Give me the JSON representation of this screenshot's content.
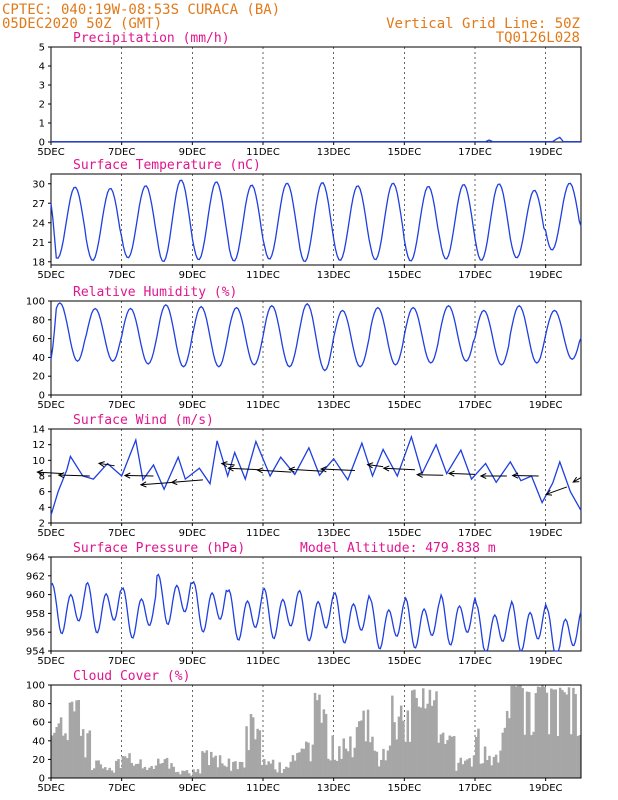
{
  "header": {
    "line1_left": "CPTEC:  040:19W-08:53S  CURACA (BA)",
    "line2_left": "05DEC2020 50Z (GMT)",
    "line1_right": "Vertical Grid Line: 50Z",
    "line2_right": "TQ0126L028"
  },
  "colors": {
    "header": "#e07a1a",
    "title": "#e0168f",
    "series": "#1f3fe0",
    "bars": "#a6a6a6"
  },
  "chart_data": [
    {
      "type": "line",
      "id": "precip",
      "title": "Precipitation (mm/h)",
      "ylim": [
        0,
        5
      ],
      "yticks": [
        0,
        1,
        2,
        3,
        4,
        5
      ],
      "xlim": [
        0,
        15
      ],
      "xticks": [
        0,
        2,
        4,
        6,
        8,
        10,
        12,
        14
      ],
      "xticklabels": [
        "5DEC",
        "7DEC",
        "9DEC",
        "11DEC",
        "13DEC",
        "15DEC",
        "17DEC",
        "19DEC"
      ],
      "model": {
        "kind": "precip",
        "base": 0.02,
        "spikes": [
          [
            12.4,
            0.1
          ],
          [
            14.3,
            0.15
          ],
          [
            14.4,
            0.25
          ]
        ]
      }
    },
    {
      "type": "line",
      "id": "temp",
      "title": "Surface Temperature (nC)",
      "ylim": [
        17.5,
        31.5
      ],
      "yticks": [
        18,
        21,
        24,
        27,
        30
      ],
      "xlim": [
        0,
        15
      ],
      "xticks": [
        0,
        2,
        4,
        6,
        8,
        10,
        12,
        14
      ],
      "xticklabels": [
        "5DEC",
        "7DEC",
        "9DEC",
        "11DEC",
        "13DEC",
        "15DEC",
        "17DEC",
        "19DEC"
      ],
      "model": {
        "kind": "diurnal",
        "start": 27,
        "peak_phase": 0.68,
        "max": [
          29.5,
          29.3,
          29.7,
          30.6,
          30.3,
          29.8,
          30.1,
          30.2,
          29.7,
          30.1,
          29.6,
          29.9,
          30.0,
          29.0,
          30.1,
          30.8
        ],
        "min": [
          18.5,
          18.2,
          18.6,
          18.0,
          18.3,
          18.1,
          18.4,
          18.0,
          18.2,
          18.3,
          18.1,
          18.4,
          18.2,
          18.6,
          19.8,
          20.5
        ]
      }
    },
    {
      "type": "line",
      "id": "rh",
      "title": "Relative Humidity (%)",
      "ylim": [
        0,
        100
      ],
      "yticks": [
        0,
        20,
        40,
        60,
        80,
        100
      ],
      "xlim": [
        0,
        15
      ],
      "xticks": [
        0,
        2,
        4,
        6,
        8,
        10,
        12,
        14
      ],
      "xticklabels": [
        "5DEC",
        "7DEC",
        "9DEC",
        "11DEC",
        "13DEC",
        "15DEC",
        "17DEC",
        "19DEC"
      ],
      "model": {
        "kind": "diurnal",
        "start": 38,
        "peak_phase": 0.25,
        "max": [
          98,
          92,
          92,
          96,
          94,
          93,
          95,
          97,
          90,
          93,
          93,
          95,
          90,
          95,
          90,
          82
        ],
        "min": [
          36,
          36,
          33,
          30,
          30,
          32,
          30,
          26,
          30,
          32,
          34,
          36,
          32,
          34,
          38,
          40
        ]
      }
    },
    {
      "type": "line",
      "id": "wind",
      "title": "Surface Wind (m/s)",
      "ylim": [
        2,
        14
      ],
      "yticks": [
        2,
        4,
        6,
        8,
        10,
        12,
        14
      ],
      "xlim": [
        0,
        15
      ],
      "xticks": [
        0,
        2,
        4,
        6,
        8,
        10,
        12,
        14
      ],
      "xticklabels": [
        "5DEC",
        "7DEC",
        "9DEC",
        "11DEC",
        "13DEC",
        "15DEC",
        "17DEC",
        "19DEC"
      ],
      "model": {
        "kind": "gusty",
        "mean": 8.3,
        "amp": 2.2,
        "points": [
          [
            0,
            3
          ],
          [
            0.2,
            6
          ],
          [
            0.45,
            8.8
          ],
          [
            0.55,
            10.5
          ],
          [
            0.9,
            8
          ],
          [
            1.2,
            7.6
          ],
          [
            1.6,
            9.6
          ],
          [
            2.0,
            8
          ],
          [
            2.4,
            12.6
          ],
          [
            2.6,
            7.5
          ],
          [
            2.9,
            9.4
          ],
          [
            3.2,
            6.3
          ],
          [
            3.6,
            10.4
          ],
          [
            3.8,
            7.6
          ],
          [
            4.2,
            9
          ],
          [
            4.5,
            7
          ],
          [
            4.7,
            12.5
          ],
          [
            5.0,
            8
          ],
          [
            5.2,
            11
          ],
          [
            5.5,
            7.6
          ],
          [
            5.8,
            12.4
          ],
          [
            6.2,
            8
          ],
          [
            6.5,
            10.4
          ],
          [
            6.9,
            8.2
          ],
          [
            7.3,
            11.6
          ],
          [
            7.6,
            8.1
          ],
          [
            8.0,
            10.2
          ],
          [
            8.4,
            7.5
          ],
          [
            8.8,
            12.2
          ],
          [
            9.1,
            8
          ],
          [
            9.4,
            11.4
          ],
          [
            9.8,
            8
          ],
          [
            10.2,
            13
          ],
          [
            10.5,
            8.3
          ],
          [
            10.9,
            12
          ],
          [
            11.2,
            8.3
          ],
          [
            11.6,
            11.3
          ],
          [
            11.9,
            7.6
          ],
          [
            12.3,
            9.6
          ],
          [
            12.6,
            7.2
          ],
          [
            13.0,
            9.8
          ],
          [
            13.3,
            7.4
          ],
          [
            13.6,
            8
          ],
          [
            13.9,
            4.6
          ],
          [
            14.2,
            7.1
          ],
          [
            14.4,
            9.8
          ],
          [
            14.7,
            6
          ],
          [
            15,
            3.6
          ]
        ]
      },
      "vectors": [
        {
          "x": 0.35,
          "y": 8.3,
          "dx": -1.0,
          "dy": 0.3
        },
        {
          "x": 1.1,
          "y": 8.0,
          "dx": -1.2,
          "dy": 0.2
        },
        {
          "x": 1.8,
          "y": 9.3,
          "dx": -0.6,
          "dy": 0.5
        },
        {
          "x": 2.9,
          "y": 8.0,
          "dx": -1.1,
          "dy": 0.1
        },
        {
          "x": 3.5,
          "y": 7.2,
          "dx": -1.3,
          "dy": -0.5
        },
        {
          "x": 4.3,
          "y": 7.5,
          "dx": -1.2,
          "dy": -0.5
        },
        {
          "x": 5.2,
          "y": 9.4,
          "dx": -0.5,
          "dy": 0.3
        },
        {
          "x": 5.9,
          "y": 8.8,
          "dx": -1.2,
          "dy": 0.3
        },
        {
          "x": 6.8,
          "y": 8.5,
          "dx": -1.3,
          "dy": 0.4
        },
        {
          "x": 7.7,
          "y": 8.6,
          "dx": -1.3,
          "dy": 0.4
        },
        {
          "x": 8.6,
          "y": 8.7,
          "dx": -1.3,
          "dy": 0.3
        },
        {
          "x": 9.4,
          "y": 9.2,
          "dx": -0.6,
          "dy": 0.4
        },
        {
          "x": 10.3,
          "y": 8.8,
          "dx": -1.2,
          "dy": 0.3
        },
        {
          "x": 11.1,
          "y": 8.1,
          "dx": -1.0,
          "dy": 0.1
        },
        {
          "x": 12.0,
          "y": 8.2,
          "dx": -1.0,
          "dy": 0.2
        },
        {
          "x": 12.9,
          "y": 8.0,
          "dx": -1.0,
          "dy": 0.0
        },
        {
          "x": 13.8,
          "y": 8.0,
          "dx": -1.0,
          "dy": 0.1
        },
        {
          "x": 14.6,
          "y": 6.6,
          "dx": -0.8,
          "dy": -1.5
        },
        {
          "x": 15.0,
          "y": 7.8,
          "dx": -0.3,
          "dy": -0.9
        }
      ]
    },
    {
      "type": "line",
      "id": "press",
      "title": "Surface Pressure (hPa)",
      "annotation": "Model Altitude: 479.838 m",
      "ylim": [
        954,
        964
      ],
      "yticks": [
        954,
        956,
        958,
        960,
        962,
        964
      ],
      "xlim": [
        0,
        15
      ],
      "xticks": [
        0,
        2,
        4,
        6,
        8,
        10,
        12,
        14
      ],
      "xticklabels": [
        "5DEC",
        "7DEC",
        "9DEC",
        "11DEC",
        "13DEC",
        "15DEC",
        "17DEC",
        "19DEC"
      ],
      "model": {
        "kind": "pressure",
        "trend_start": 958.6,
        "trend_end": 956.3,
        "amp": 2.0,
        "day_offsets": [
          0.0,
          0.3,
          -0.2,
          1.8,
          1.0,
          0.1,
          0.5,
          0.4,
          0.3,
          -0.3,
          0.0,
          0.6,
          -0.4,
          0.1,
          -0.6
        ]
      }
    },
    {
      "type": "bar",
      "id": "cloud",
      "title": "Cloud Cover (%)",
      "ylim": [
        0,
        100
      ],
      "yticks": [
        0,
        20,
        40,
        60,
        80,
        100
      ],
      "xlim": [
        0,
        15
      ],
      "xticks": [
        0,
        2,
        4,
        6,
        8,
        10,
        12,
        14
      ],
      "xticklabels": [
        "5DEC",
        "7DEC",
        "9DEC",
        "11DEC",
        "13DEC",
        "15DEC",
        "17DEC",
        "19DEC"
      ],
      "segments": [
        [
          0.0,
          0.4,
          20,
          75
        ],
        [
          0.4,
          0.8,
          60,
          92
        ],
        [
          0.8,
          1.1,
          30,
          55
        ],
        [
          1.1,
          1.4,
          10,
          30
        ],
        [
          1.4,
          1.8,
          5,
          12
        ],
        [
          1.8,
          2.2,
          10,
          28
        ],
        [
          2.2,
          2.6,
          8,
          22
        ],
        [
          2.6,
          3.0,
          5,
          14
        ],
        [
          3.0,
          3.5,
          10,
          25
        ],
        [
          3.5,
          4.2,
          2,
          10
        ],
        [
          4.2,
          4.6,
          15,
          35
        ],
        [
          4.6,
          5.0,
          5,
          28
        ],
        [
          5.0,
          5.5,
          3,
          22
        ],
        [
          5.5,
          5.9,
          20,
          75
        ],
        [
          5.9,
          6.3,
          5,
          25
        ],
        [
          6.3,
          6.8,
          4,
          18
        ],
        [
          6.8,
          7.4,
          5,
          40
        ],
        [
          7.4,
          7.8,
          40,
          95
        ],
        [
          7.8,
          8.2,
          20,
          55
        ],
        [
          8.2,
          8.6,
          10,
          45
        ],
        [
          8.6,
          9.1,
          15,
          75
        ],
        [
          9.1,
          9.6,
          5,
          40
        ],
        [
          9.6,
          10.1,
          40,
          95
        ],
        [
          10.1,
          10.6,
          60,
          100
        ],
        [
          10.6,
          11.0,
          60,
          98
        ],
        [
          11.0,
          11.4,
          20,
          50
        ],
        [
          11.4,
          11.9,
          5,
          25
        ],
        [
          11.9,
          12.3,
          10,
          55
        ],
        [
          12.3,
          12.7,
          5,
          35
        ],
        [
          12.7,
          13.0,
          30,
          75
        ],
        [
          13.0,
          13.6,
          80,
          100
        ],
        [
          13.6,
          14.3,
          85,
          100
        ],
        [
          14.3,
          15.0,
          80,
          100
        ]
      ]
    }
  ]
}
